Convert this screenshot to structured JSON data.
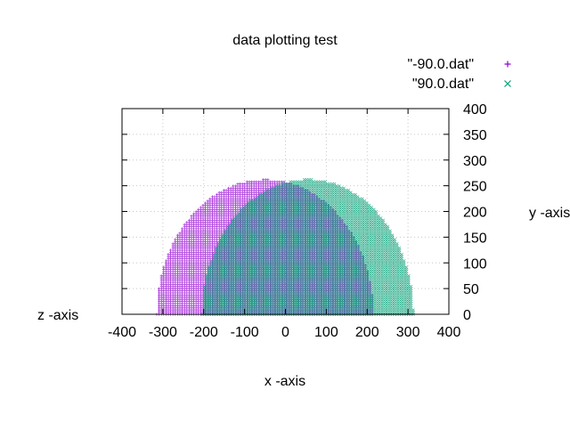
{
  "chart_data": {
    "type": "scatter",
    "title": "data plotting test",
    "xlabel": "x -axis",
    "ylabel": "y -axis",
    "zlabel": "z -axis",
    "xlim": [
      -400,
      400
    ],
    "ylim": [
      0,
      400
    ],
    "x_ticks": [
      -400,
      -300,
      -200,
      -100,
      0,
      100,
      200,
      300,
      400
    ],
    "y_ticks": [
      0,
      50,
      100,
      150,
      200,
      250,
      300,
      350,
      400
    ],
    "y_axis_side": "right",
    "grid": true,
    "legend_position": "top-right",
    "series": [
      {
        "name": "\"-90.0.dat\"",
        "marker": "+",
        "color": "#9400d3",
        "center_x": -50,
        "radius_x": 265,
        "height": 262,
        "fill": "half-ellipse"
      },
      {
        "name": "\"90.0.dat\"",
        "marker": "x",
        "color": "#009e73",
        "center_x": 55,
        "radius_x": 258,
        "height": 262,
        "fill": "half-ellipse"
      }
    ]
  }
}
